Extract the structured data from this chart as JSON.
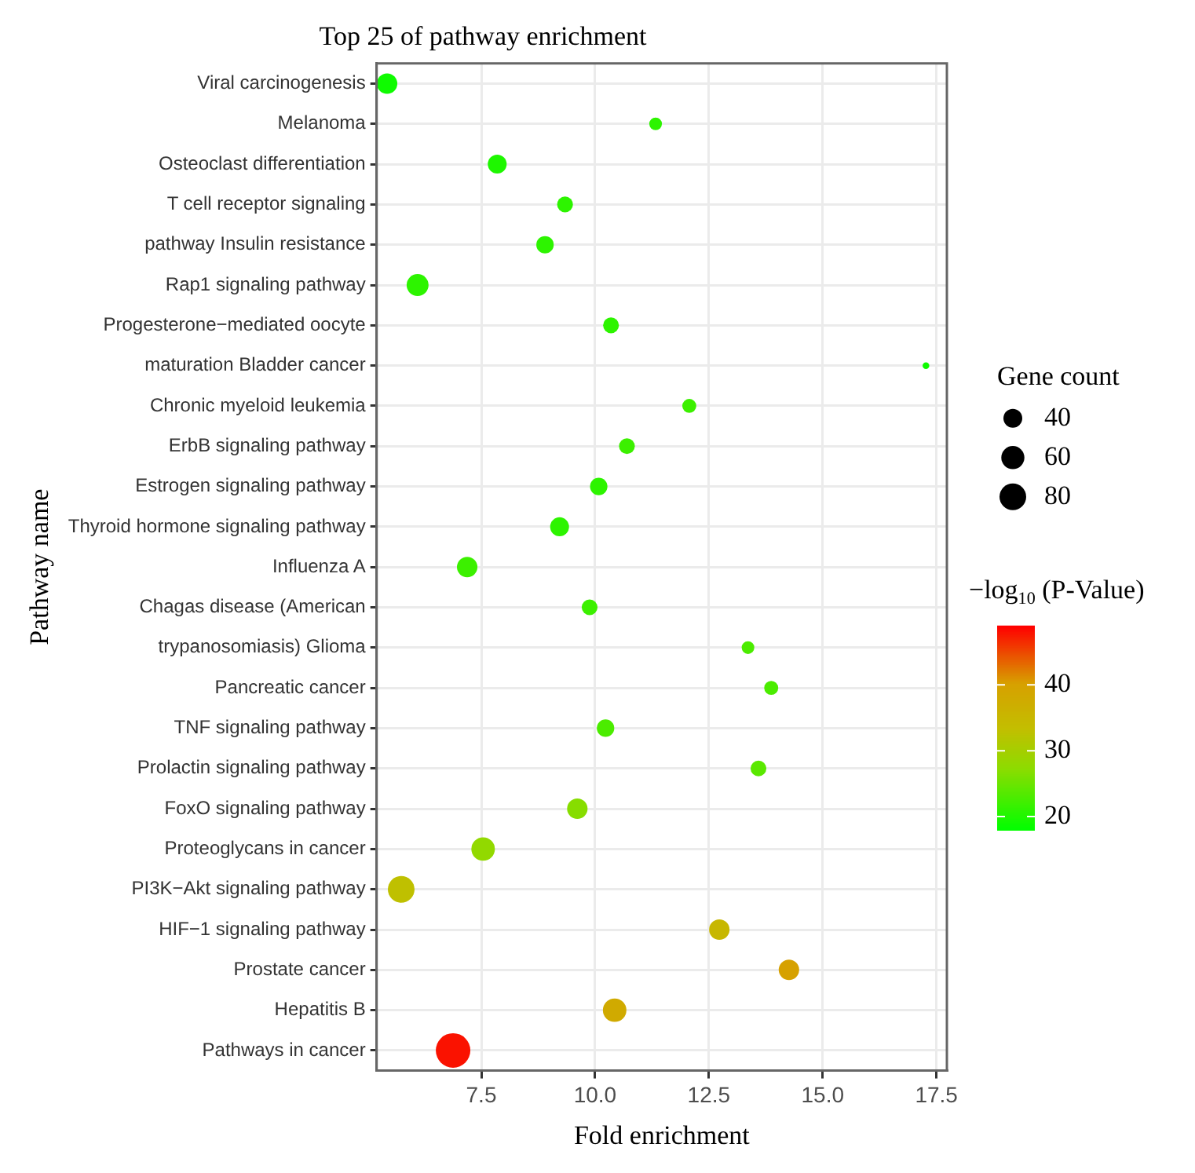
{
  "chart_data": {
    "type": "bubble",
    "title": "Top 25 of pathway enrichment",
    "xlabel": "Fold enrichment",
    "ylabel": "Pathway name",
    "legend_title": "Gene count",
    "clabel": "−log$_{10}$ (P-Value)",
    "categories": [
      "Viral carcinogenesis",
      "Melanoma",
      "Osteoclast differentiation",
      "T cell receptor signaling",
      "pathway Insulin resistance",
      "Rap1 signaling pathway",
      "Progesterone−mediated oocyte",
      "maturation Bladder cancer",
      "Chronic myeloid leukemia",
      "ErbB signaling pathway",
      "Estrogen signaling pathway",
      "Thyroid hormone signaling pathway",
      "Influenza A",
      "Chagas disease (American",
      "trypanosomiasis) Glioma",
      "Pancreatic cancer",
      "TNF signaling pathway",
      "Prolactin signaling pathway",
      "FoxO signaling pathway",
      "Proteoglycans in cancer",
      "PI3K−Akt signaling pathway",
      "HIF−1 signaling pathway",
      "Prostate cancer",
      "Hepatitis B",
      "Pathways in cancer"
    ],
    "values": [
      5.43,
      11.33,
      7.85,
      9.34,
      8.9,
      6.1,
      10.35,
      17.27,
      12.07,
      10.7,
      10.08,
      9.22,
      7.19,
      9.88,
      13.36,
      13.87,
      10.23,
      13.59,
      9.61,
      7.54,
      5.74,
      12.73,
      14.26,
      10.43,
      6.88
    ],
    "sizes": [
      47,
      18,
      40,
      28,
      34,
      54,
      28,
      5,
      22,
      28,
      34,
      40,
      47,
      28,
      18,
      22,
      34,
      28,
      47,
      62,
      80,
      47,
      47,
      62,
      134
    ],
    "cvalues": [
      19,
      21,
      20,
      21,
      21,
      21,
      21,
      19,
      22,
      22,
      21,
      21,
      22,
      22,
      23,
      23,
      23,
      24,
      27,
      28,
      33,
      35,
      40,
      38,
      48
    ],
    "size_legend": [
      40,
      60,
      80
    ],
    "clim": [
      18,
      49
    ],
    "cticks": [
      20,
      30,
      40
    ],
    "orientation": "horizontal",
    "xlim": [
      5.2,
      17.73
    ],
    "xticks": [
      7.5,
      {
        "value": 10,
        "label": "10.0"
      },
      12.5,
      {
        "value": 15,
        "label": "15.0"
      },
      17.5
    ],
    "grid": true
  }
}
